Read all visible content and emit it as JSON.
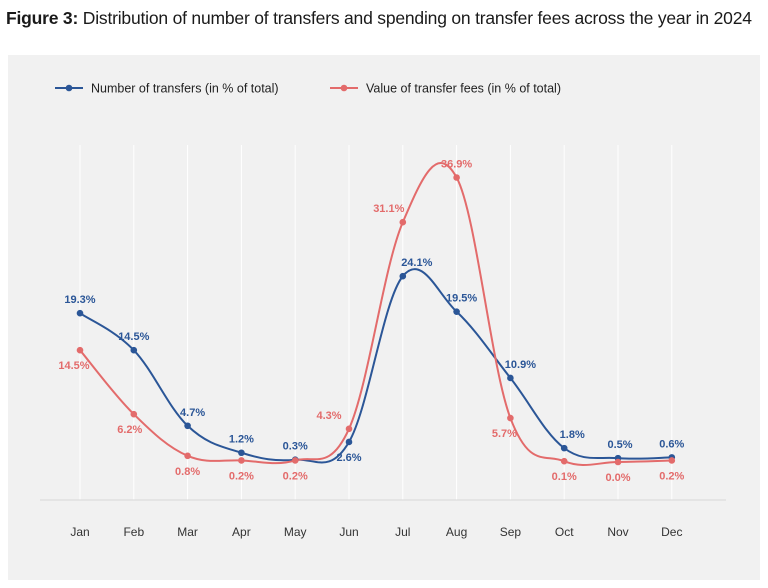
{
  "figure": {
    "label": "Figure 3:",
    "title": "Distribution of number of transfers and spending on transfer fees across the year in 2024"
  },
  "colors": {
    "blue": "#2b5697",
    "red": "#e36b6b",
    "panel": "#f1f1f1",
    "grid": "#ffffff"
  },
  "chart_data": {
    "type": "line",
    "categories": [
      "Jan",
      "Feb",
      "Mar",
      "Apr",
      "May",
      "Jun",
      "Jul",
      "Aug",
      "Sep",
      "Oct",
      "Nov",
      "Dec"
    ],
    "series": [
      {
        "name": "Number of transfers (in % of total)",
        "color": "#2b5697",
        "values": [
          19.3,
          14.5,
          4.7,
          1.2,
          0.3,
          2.6,
          24.1,
          19.5,
          10.9,
          1.8,
          0.5,
          0.6
        ],
        "labels": [
          "19.3%",
          "14.5%",
          "4.7%",
          "1.2%",
          "0.3%",
          "2.6%",
          "24.1%",
          "19.5%",
          "10.9%",
          "1.8%",
          "0.5%",
          "0.6%"
        ]
      },
      {
        "name": "Value of transfer fees (in % of total)",
        "color": "#e36b6b",
        "values": [
          14.5,
          6.2,
          0.8,
          0.2,
          0.2,
          4.3,
          31.1,
          36.9,
          5.7,
          0.1,
          0.0,
          0.2
        ],
        "labels": [
          "14.5%",
          "6.2%",
          "0.8%",
          "0.2%",
          "0.2%",
          "4.3%",
          "31.1%",
          "36.9%",
          "5.7%",
          "0.1%",
          "0.0%",
          "0.2%"
        ]
      }
    ],
    "ylim": [
      0,
      42
    ],
    "grid": "vertical",
    "legend": "top-left",
    "smooth": true
  }
}
